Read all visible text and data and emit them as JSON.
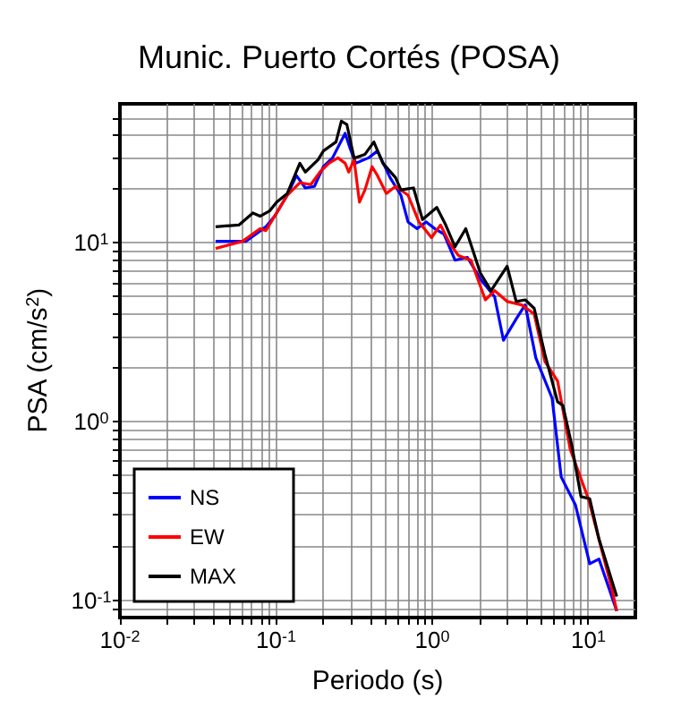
{
  "chart_data": {
    "type": "line",
    "title": "Munic. Puerto Cortés (POSA)",
    "xlabel": "Periodo (s)",
    "ylabel": "PSA (cm/s$^{2}$)",
    "log": "xy",
    "xlim": [
      0.01,
      20
    ],
    "ylim": [
      0.08,
      60
    ],
    "xticks": [
      {
        "value": 0.01,
        "label": "10$^{-2}$"
      },
      {
        "value": 0.02,
        "label": null
      },
      {
        "value": 0.03,
        "label": null
      },
      {
        "value": 0.04,
        "label": null
      },
      {
        "value": 0.05,
        "label": null
      },
      {
        "value": 0.06,
        "label": null
      },
      {
        "value": 0.07,
        "label": null
      },
      {
        "value": 0.08,
        "label": null
      },
      {
        "value": 0.09,
        "label": null
      },
      {
        "value": 0.1,
        "label": "10$^{-1}$"
      },
      {
        "value": 0.2,
        "label": null
      },
      {
        "value": 0.3,
        "label": null
      },
      {
        "value": 0.4,
        "label": null
      },
      {
        "value": 0.5,
        "label": null
      },
      {
        "value": 0.6,
        "label": null
      },
      {
        "value": 0.7,
        "label": null
      },
      {
        "value": 0.8,
        "label": null
      },
      {
        "value": 0.9,
        "label": null
      },
      {
        "value": 1,
        "label": "10$^{0}$"
      },
      {
        "value": 2,
        "label": null
      },
      {
        "value": 3,
        "label": null
      },
      {
        "value": 4,
        "label": null
      },
      {
        "value": 5,
        "label": null
      },
      {
        "value": 6,
        "label": null
      },
      {
        "value": 7,
        "label": null
      },
      {
        "value": 8,
        "label": null
      },
      {
        "value": 9,
        "label": null
      },
      {
        "value": 10,
        "label": "10$^{1}$"
      }
    ],
    "yticks": [
      {
        "value": 0.09,
        "label": null
      },
      {
        "value": 0.1,
        "label": "10$^{-1}$"
      },
      {
        "value": 0.2,
        "label": null
      },
      {
        "value": 0.3,
        "label": null
      },
      {
        "value": 0.4,
        "label": null
      },
      {
        "value": 0.5,
        "label": null
      },
      {
        "value": 0.6,
        "label": null
      },
      {
        "value": 0.7,
        "label": null
      },
      {
        "value": 0.8,
        "label": null
      },
      {
        "value": 0.9,
        "label": null
      },
      {
        "value": 1,
        "label": "10$^{0}$"
      },
      {
        "value": 2,
        "label": null
      },
      {
        "value": 3,
        "label": null
      },
      {
        "value": 4,
        "label": null
      },
      {
        "value": 5,
        "label": null
      },
      {
        "value": 6,
        "label": null
      },
      {
        "value": 7,
        "label": null
      },
      {
        "value": 8,
        "label": null
      },
      {
        "value": 9,
        "label": null
      },
      {
        "value": 10,
        "label": "10$^{1}$"
      },
      {
        "value": 20,
        "label": null
      },
      {
        "value": 30,
        "label": null
      },
      {
        "value": 40,
        "label": null
      },
      {
        "value": 50,
        "label": null
      }
    ],
    "grid": true,
    "legend": "bottom left",
    "marker": "none",
    "line_style": "solid",
    "series": [
      {
        "name": "NS",
        "color": "#0000ff",
        "x": [
          0.041,
          0.064,
          0.086,
          0.098,
          0.118,
          0.135,
          0.154,
          0.176,
          0.201,
          0.23,
          0.277,
          0.299,
          0.324,
          0.391,
          0.446,
          0.537,
          0.63,
          0.7,
          0.8,
          0.914,
          1.04,
          1.19,
          1.4,
          1.68,
          2.03,
          2.51,
          2.86,
          3.45,
          3.94,
          4.61,
          5.86,
          6.7,
          8.28,
          10.2,
          11.7,
          15.2
        ],
        "values": [
          10.2,
          10.2,
          12.3,
          14.1,
          18.5,
          23.8,
          20.3,
          20.7,
          26.7,
          29.9,
          41,
          33.5,
          27.9,
          29.9,
          32.7,
          23.2,
          18.5,
          13.1,
          12,
          13.1,
          12,
          11.2,
          8,
          8.3,
          6.3,
          5,
          2.85,
          3.75,
          4.5,
          2.27,
          1.35,
          0.49,
          0.34,
          0.16,
          0.17,
          0.087
        ]
      },
      {
        "name": "EW",
        "color": "#ff0000",
        "x": [
          0.041,
          0.061,
          0.079,
          0.086,
          0.095,
          0.118,
          0.142,
          0.167,
          0.191,
          0.218,
          0.249,
          0.277,
          0.292,
          0.316,
          0.342,
          0.371,
          0.412,
          0.446,
          0.509,
          0.582,
          0.7,
          0.822,
          0.99,
          1.13,
          1.29,
          1.47,
          1.77,
          2.19,
          2.51,
          3.02,
          3.73,
          4.5,
          5.27,
          6.35,
          7.65,
          10,
          14.1,
          15.2
        ],
        "values": [
          9.3,
          10.2,
          12,
          11.7,
          13.5,
          18.5,
          21.7,
          21.2,
          24.9,
          27.9,
          29.9,
          27.9,
          24.9,
          29.2,
          16.9,
          19.8,
          26.7,
          23.8,
          18.9,
          20.7,
          18.5,
          13.1,
          10.7,
          12.6,
          10,
          8.5,
          8,
          4.8,
          5.4,
          4.7,
          4.5,
          4,
          2.17,
          1.69,
          0.7,
          0.37,
          0.117,
          0.087
        ]
      },
      {
        "name": "MAX",
        "color": "#000000",
        "x": [
          0.041,
          0.058,
          0.071,
          0.079,
          0.091,
          0.101,
          0.118,
          0.142,
          0.154,
          0.186,
          0.201,
          0.242,
          0.262,
          0.284,
          0.316,
          0.371,
          0.423,
          0.483,
          0.582,
          0.63,
          0.759,
          0.867,
          1.07,
          1.22,
          1.4,
          1.64,
          2.03,
          2.38,
          3.02,
          3.45,
          3.94,
          4.5,
          5.27,
          6.35,
          6.87,
          7.85,
          8.97,
          10.2,
          11.7,
          15.2
        ],
        "values": [
          12.3,
          12.6,
          14.7,
          14.1,
          15.1,
          16.9,
          18.9,
          27.9,
          24.9,
          29.2,
          32.7,
          36.7,
          48,
          46,
          29.8,
          31.3,
          36.7,
          27.9,
          23.2,
          19.8,
          20.3,
          13.5,
          15.8,
          12.6,
          9.5,
          12,
          6.8,
          5.4,
          7.4,
          4.7,
          4.8,
          4.3,
          2.38,
          1.29,
          1.23,
          0.73,
          0.38,
          0.37,
          0.22,
          0.105
        ]
      }
    ]
  }
}
